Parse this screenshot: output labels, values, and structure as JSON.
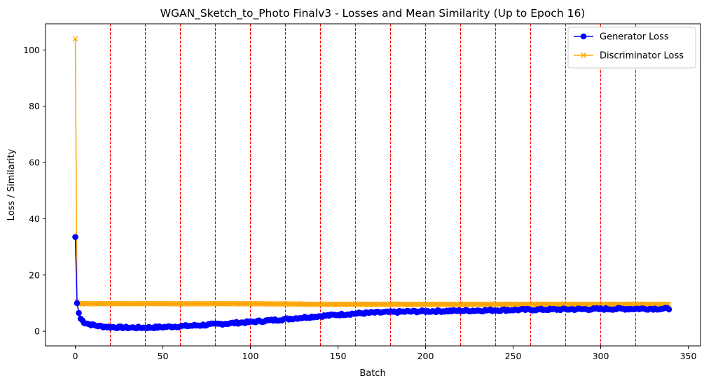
{
  "chart_data": {
    "type": "line",
    "title": "WGAN_Sketch_to_Photo Finalv3 - Losses and Mean Similarity (Up to Epoch 16)",
    "xlabel": "Batch",
    "ylabel": "Loss / Similarity",
    "xlim": [
      -17,
      357
    ],
    "ylim": [
      -5.2,
      109.3
    ],
    "xticks": [
      0,
      50,
      100,
      150,
      200,
      250,
      300,
      350
    ],
    "yticks": [
      0,
      20,
      40,
      60,
      80,
      100
    ],
    "grid": false,
    "legend_position": "top-right",
    "epoch_lines": [
      20,
      40,
      60,
      80,
      100,
      120,
      140,
      160,
      180,
      200,
      220,
      240,
      260,
      280,
      300,
      320
    ],
    "epoch_line_color": "#ff0000",
    "series": [
      {
        "name": "Generator Loss",
        "color": "#0000ff",
        "marker": "circle",
        "n_points": 340,
        "keypoints": [
          [
            0,
            33.5
          ],
          [
            1,
            10.0
          ],
          [
            2,
            6.5
          ],
          [
            3,
            4.5
          ],
          [
            5,
            3.2
          ],
          [
            8,
            2.5
          ],
          [
            12,
            2.0
          ],
          [
            15,
            1.7
          ],
          [
            20,
            1.5
          ],
          [
            30,
            1.3
          ],
          [
            40,
            1.3
          ],
          [
            50,
            1.5
          ],
          [
            60,
            1.8
          ],
          [
            70,
            2.1
          ],
          [
            80,
            2.5
          ],
          [
            90,
            2.9
          ],
          [
            100,
            3.3
          ],
          [
            110,
            3.8
          ],
          [
            120,
            4.3
          ],
          [
            130,
            4.9
          ],
          [
            140,
            5.4
          ],
          [
            150,
            5.9
          ],
          [
            160,
            6.3
          ],
          [
            170,
            6.6
          ],
          [
            180,
            6.8
          ],
          [
            190,
            7.0
          ],
          [
            200,
            7.1
          ],
          [
            220,
            7.3
          ],
          [
            250,
            7.6
          ],
          [
            280,
            7.8
          ],
          [
            300,
            7.9
          ],
          [
            320,
            8.0
          ],
          [
            339,
            8.0
          ]
        ],
        "noise": 0.35
      },
      {
        "name": "Discriminator Loss",
        "color": "#ffa500",
        "marker": "x",
        "n_points": 340,
        "keypoints": [
          [
            0,
            104.0
          ],
          [
            1,
            10.5
          ],
          [
            2,
            9.8
          ],
          [
            50,
            9.8
          ],
          [
            100,
            9.8
          ],
          [
            120,
            9.7
          ],
          [
            140,
            9.6
          ],
          [
            160,
            9.6
          ],
          [
            200,
            9.6
          ],
          [
            250,
            9.6
          ],
          [
            300,
            9.6
          ],
          [
            339,
            9.6
          ]
        ],
        "noise": 0.06
      }
    ]
  }
}
